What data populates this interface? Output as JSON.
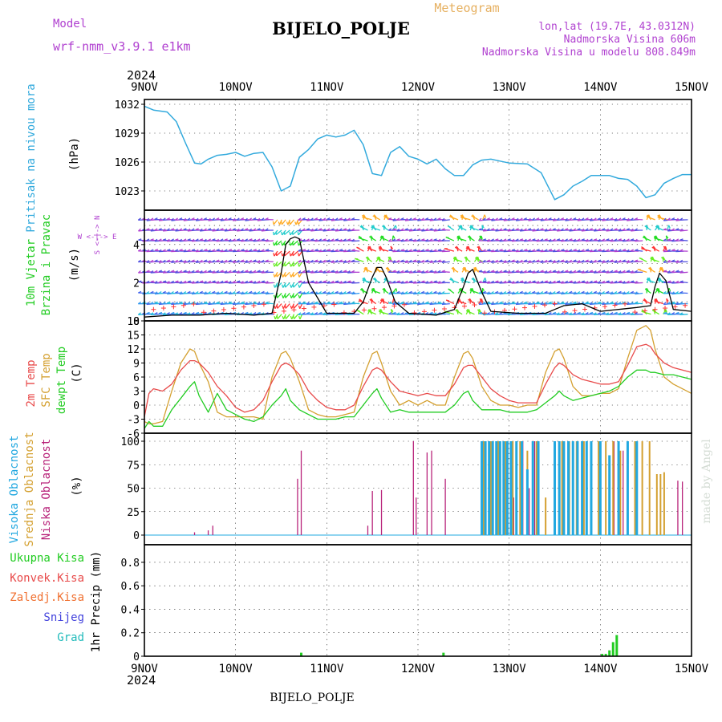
{
  "header": {
    "model_label": "Model",
    "model_name": "wrf-nmm_v3.9.1 e1km",
    "station": "BIJELO_POLJE",
    "meteogram_label": "Meteogram",
    "lonlat": "lon,lat (19.7E, 43.0312N)",
    "elevation": "Nadmorska Visina 606m",
    "model_elevation": "Nadmorska Visina u modelu 808.849m",
    "year_top": "2024",
    "year_bottom": "2024",
    "footer_station": "BIJELO_POLJE",
    "watermark": "made by Angel"
  },
  "colors": {
    "pressure": "#33aadd",
    "temp2m": "#e84a4a",
    "sfc": "#d4a030",
    "dewpt": "#22cc22",
    "high_cloud": "#22a8e0",
    "mid_cloud": "#d4a030",
    "low_cloud": "#b8237a",
    "total_precip": "#22cc22",
    "conv_precip": "#e84a4a",
    "frozen_precip": "#f07030",
    "snow": "#4444dd",
    "hail": "#22bbbb",
    "model": "#b040d0"
  },
  "x_axis": {
    "labels": [
      "9NOV",
      "10NOV",
      "11NOV",
      "12NOV",
      "13NOV",
      "14NOV",
      "15NOV"
    ],
    "start_day": 9,
    "end_day": 15
  },
  "panels": {
    "pressure": {
      "ylabel_name": "Pritisak na nivou mora",
      "ylabel_unit": "(hPa)",
      "ticks": [
        "1032",
        "1029",
        "1026",
        "1023"
      ]
    },
    "wind": {
      "ylabel_line1": "10m Vjetar",
      "ylabel_line2": "Brzina i Pravac",
      "ylabel_unit": "(m/s)",
      "compass": "W <-|-> E",
      "compass_vertical": "S <-|-> N",
      "ticks": [
        "4",
        "2",
        "0"
      ]
    },
    "temperature": {
      "ylabel_2m": "2m Temp",
      "ylabel_sfc": "SFC Temp",
      "ylabel_dew": "dewpt Temp",
      "ylabel_unit": "(C)",
      "ticks": [
        "18",
        "15",
        "12",
        "9",
        "6",
        "3",
        "0",
        "-3",
        "-6"
      ]
    },
    "cloud": {
      "ylabel_high": "Visoka Oblacnost",
      "ylabel_mid": "Srednja Oblacnost",
      "ylabel_low": "Niska Oblacnost",
      "ylabel_unit": "(%)",
      "ticks": [
        "100",
        "75",
        "50",
        "25",
        "0"
      ]
    },
    "precip": {
      "legend_total": "Ukupna Kisa",
      "legend_conv": "Konvek.Kisa",
      "legend_frozen": "Zaledj.Kisa",
      "legend_snow": "Snijeg",
      "legend_hail": "Grad",
      "ylabel": "1hr Precip (mm)",
      "ticks": [
        "0.8",
        "0.6",
        "0.4",
        "0.2",
        "0"
      ]
    }
  },
  "chart_data": [
    {
      "type": "line",
      "name": "pressure",
      "ylabel": "Pritisak na nivou mora (hPa)",
      "ylim": [
        1021,
        1032.5
      ],
      "x": [
        9.0,
        9.1,
        9.25,
        9.35,
        9.45,
        9.55,
        9.62,
        9.7,
        9.8,
        9.9,
        10.0,
        10.1,
        10.2,
        10.3,
        10.4,
        10.5,
        10.6,
        10.7,
        10.8,
        10.9,
        11.0,
        11.1,
        11.2,
        11.3,
        11.4,
        11.5,
        11.6,
        11.7,
        11.8,
        11.9,
        12.0,
        12.1,
        12.2,
        12.3,
        12.4,
        12.5,
        12.6,
        12.7,
        12.8,
        12.9,
        13.0,
        13.2,
        13.35,
        13.5,
        13.6,
        13.7,
        13.8,
        13.9,
        14.0,
        14.1,
        14.2,
        14.3,
        14.4,
        14.5,
        14.6,
        14.7,
        14.8,
        14.9,
        15.0
      ],
      "series": [
        {
          "name": "pressure",
          "values": [
            1031.8,
            1031.4,
            1031.2,
            1030.2,
            1028.0,
            1025.9,
            1025.8,
            1026.3,
            1026.7,
            1026.8,
            1027.0,
            1026.6,
            1026.9,
            1027.0,
            1025.5,
            1023.0,
            1023.5,
            1026.5,
            1027.3,
            1028.4,
            1028.8,
            1028.6,
            1028.8,
            1029.3,
            1027.8,
            1024.8,
            1024.6,
            1027.0,
            1027.6,
            1026.6,
            1026.3,
            1025.8,
            1026.3,
            1025.3,
            1024.6,
            1024.6,
            1025.7,
            1026.2,
            1026.3,
            1026.1,
            1025.9,
            1025.8,
            1024.9,
            1022.1,
            1022.6,
            1023.5,
            1024.0,
            1024.6,
            1024.6,
            1024.6,
            1024.3,
            1024.2,
            1023.5,
            1022.3,
            1022.6,
            1023.8,
            1024.3,
            1024.7,
            1024.7
          ]
        }
      ]
    },
    {
      "type": "line",
      "name": "wind",
      "ylabel": "10m Vjetar Brzina i Pravac (m/s)",
      "ylim": [
        0,
        5.8
      ],
      "x": [
        9.0,
        9.3,
        9.6,
        9.9,
        10.2,
        10.4,
        10.5,
        10.55,
        10.6,
        10.65,
        10.7,
        10.8,
        11.0,
        11.3,
        11.4,
        11.5,
        11.55,
        11.6,
        11.65,
        11.75,
        11.9,
        12.2,
        12.4,
        12.5,
        12.55,
        12.6,
        12.7,
        12.8,
        13.1,
        13.4,
        13.5,
        13.6,
        13.8,
        14.0,
        14.2,
        14.4,
        14.55,
        14.6,
        14.65,
        14.72,
        14.8,
        15.0
      ],
      "series": [
        {
          "name": "speed",
          "values": [
            0.2,
            0.3,
            0.3,
            0.4,
            0.3,
            0.4,
            2.5,
            4.0,
            4.3,
            4.4,
            4.3,
            2.0,
            0.4,
            0.4,
            1.0,
            2.3,
            2.8,
            2.8,
            2.3,
            1.0,
            0.4,
            0.3,
            0.6,
            1.8,
            2.5,
            2.7,
            1.5,
            0.5,
            0.4,
            0.4,
            0.6,
            0.8,
            0.9,
            0.5,
            0.6,
            0.7,
            0.8,
            1.8,
            2.5,
            2.1,
            0.6,
            0.5
          ]
        }
      ]
    },
    {
      "type": "line",
      "name": "temperature",
      "ylabel": "(C)",
      "ylim": [
        -6,
        18
      ],
      "x": [
        9.0,
        9.05,
        9.1,
        9.2,
        9.3,
        9.4,
        9.5,
        9.55,
        9.6,
        9.7,
        9.8,
        9.9,
        10.0,
        10.1,
        10.2,
        10.3,
        10.4,
        10.5,
        10.55,
        10.6,
        10.7,
        10.8,
        10.9,
        11.0,
        11.1,
        11.2,
        11.3,
        11.4,
        11.5,
        11.55,
        11.6,
        11.7,
        11.8,
        11.9,
        12.0,
        12.1,
        12.2,
        12.3,
        12.4,
        12.5,
        12.55,
        12.6,
        12.7,
        12.8,
        12.9,
        13.0,
        13.1,
        13.2,
        13.3,
        13.4,
        13.5,
        13.55,
        13.6,
        13.7,
        13.8,
        13.9,
        14.0,
        14.1,
        14.2,
        14.3,
        14.4,
        14.5,
        14.55,
        14.6,
        14.7,
        14.8,
        14.9,
        15.0
      ],
      "series": [
        {
          "name": "2m Temp",
          "values": [
            -2.5,
            2.5,
            3.5,
            3.0,
            4.5,
            7.5,
            9.5,
            9.5,
            9.0,
            7.0,
            4.0,
            2.0,
            -0.5,
            -1.5,
            -1.0,
            1.0,
            5.0,
            8.5,
            9.0,
            8.5,
            6.5,
            3.0,
            1.0,
            -0.5,
            -1.0,
            -1.0,
            0.0,
            4.0,
            7.5,
            8.0,
            7.5,
            5.0,
            3.0,
            2.5,
            2.0,
            2.5,
            2.0,
            2.0,
            4.5,
            8.0,
            8.5,
            8.5,
            6.0,
            3.5,
            2.0,
            1.0,
            0.5,
            0.5,
            0.5,
            4.5,
            8.0,
            9.0,
            8.5,
            6.5,
            5.5,
            5.0,
            4.5,
            4.5,
            5.0,
            8.5,
            12.5,
            13.0,
            12.5,
            11.0,
            9.0,
            8.0,
            7.5,
            7.0
          ]
        },
        {
          "name": "SFC Temp",
          "values": [
            -3.5,
            -4.0,
            -4.0,
            -3.5,
            3.0,
            9.0,
            12.0,
            11.5,
            9.0,
            5.0,
            -1.5,
            -2.5,
            -2.5,
            -2.5,
            -2.5,
            -3.0,
            6.0,
            11.0,
            11.5,
            10.0,
            5.0,
            -1.0,
            -2.0,
            -2.5,
            -2.5,
            -2.0,
            -1.5,
            6.0,
            11.0,
            11.5,
            9.0,
            3.0,
            0.0,
            1.0,
            0.0,
            1.0,
            0.0,
            0.0,
            6.0,
            11.0,
            11.5,
            10.0,
            4.0,
            1.0,
            0.0,
            0.0,
            -0.5,
            0.0,
            0.0,
            7.0,
            11.5,
            12.0,
            10.0,
            4.0,
            2.0,
            2.0,
            2.5,
            2.5,
            3.5,
            10.0,
            16.0,
            17.0,
            16.0,
            12.0,
            6.0,
            4.5,
            3.5,
            2.5
          ]
        },
        {
          "name": "dewpt Temp",
          "values": [
            -5.0,
            -3.5,
            -4.5,
            -4.5,
            -1.0,
            1.5,
            4.0,
            5.0,
            2.0,
            -1.5,
            2.5,
            -1.0,
            -2.0,
            -3.0,
            -3.5,
            -2.5,
            0.0,
            2.0,
            3.5,
            1.0,
            -1.0,
            -2.0,
            -3.0,
            -3.0,
            -3.0,
            -2.5,
            -2.5,
            0.0,
            2.5,
            3.5,
            1.5,
            -1.5,
            -1.0,
            -1.5,
            -1.5,
            -1.5,
            -1.5,
            -1.5,
            0.0,
            2.5,
            3.0,
            1.0,
            -1.0,
            -1.0,
            -1.0,
            -1.5,
            -1.5,
            -1.5,
            -1.0,
            0.5,
            2.0,
            3.0,
            2.0,
            1.0,
            1.5,
            2.0,
            2.5,
            3.0,
            4.0,
            6.0,
            7.5,
            7.5,
            7.0,
            7.0,
            6.5,
            6.5,
            6.0,
            5.5
          ]
        }
      ]
    },
    {
      "type": "bar",
      "name": "cloud",
      "ylabel": "(%)",
      "ylim": [
        0,
        100
      ],
      "series": [
        {
          "name": "Niska Oblacnost",
          "x": [
            9.55,
            9.7,
            9.75,
            10.68,
            10.72,
            11.45,
            11.5,
            11.6,
            11.95,
            11.98,
            12.1,
            12.15,
            12.3,
            12.95,
            13.05,
            13.15,
            13.22,
            13.28,
            14.15,
            14.25,
            14.85,
            14.9
          ],
          "values": [
            3,
            5,
            10,
            60,
            90,
            10,
            47,
            48,
            100,
            40,
            88,
            90,
            60,
            60,
            40,
            100,
            50,
            100,
            100,
            90,
            58,
            57
          ]
        },
        {
          "name": "Srednja Oblacnost",
          "x": [
            12.72,
            12.8,
            12.88,
            12.96,
            13.04,
            13.12,
            13.2,
            13.3,
            13.4,
            13.5,
            13.58,
            13.66,
            13.74,
            13.82,
            13.9,
            13.98,
            14.06,
            14.14,
            14.22,
            14.3,
            14.38,
            14.46,
            14.54,
            14.62,
            14.66,
            14.7
          ],
          "values": [
            100,
            100,
            100,
            100,
            100,
            100,
            90,
            100,
            40,
            100,
            100,
            100,
            100,
            100,
            100,
            100,
            100,
            100,
            90,
            100,
            100,
            100,
            100,
            65,
            65,
            67
          ]
        },
        {
          "name": "Visoka Oblacnost",
          "x": [
            12.7,
            12.74,
            12.78,
            12.82,
            12.86,
            12.9,
            12.94,
            12.98,
            13.02,
            13.08,
            13.14,
            13.2,
            13.26,
            13.32,
            13.5,
            13.55,
            13.6,
            13.65,
            13.7,
            13.75,
            13.8,
            13.85,
            13.9,
            14.0,
            14.1,
            14.2,
            14.3,
            14.4
          ],
          "values": [
            100,
            100,
            100,
            100,
            100,
            100,
            100,
            100,
            100,
            100,
            100,
            70,
            100,
            100,
            100,
            100,
            100,
            100,
            100,
            100,
            100,
            100,
            100,
            100,
            85,
            100,
            100,
            100
          ]
        }
      ]
    },
    {
      "type": "bar",
      "name": "precip",
      "ylabel": "1hr Precip (mm)",
      "ylim": [
        0,
        0.95
      ],
      "series": [
        {
          "name": "Ukupna Kisa",
          "x": [
            10.72,
            12.28,
            14.02,
            14.06,
            14.1,
            14.14,
            14.18
          ],
          "values": [
            0.03,
            0.03,
            0.02,
            0.02,
            0.05,
            0.12,
            0.18
          ]
        }
      ]
    }
  ]
}
